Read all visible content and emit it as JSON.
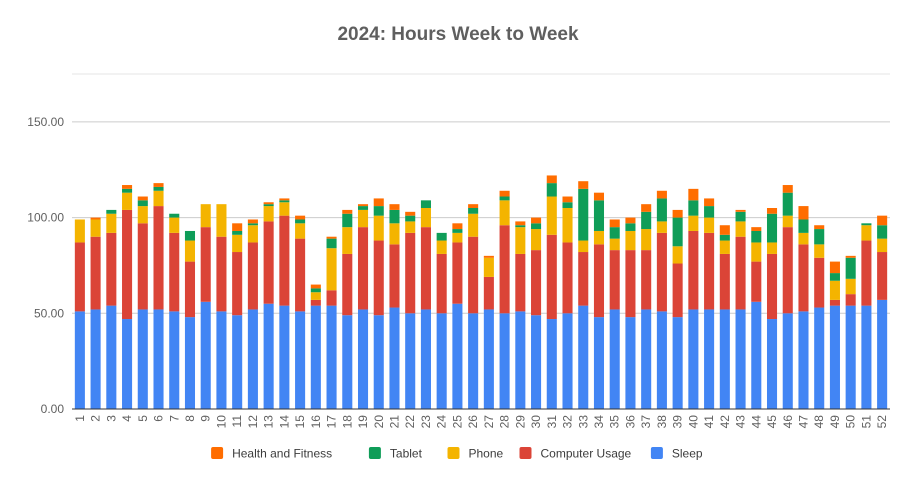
{
  "chart_data": {
    "type": "bar",
    "stacked": true,
    "title": "2024: Hours Week to Week",
    "xlabel": "",
    "ylabel": "",
    "ylim": [
      0,
      175
    ],
    "yticks": [
      0,
      50,
      100,
      150
    ],
    "ytick_labels": [
      "0.00",
      "50.00",
      "100.00",
      "150.00"
    ],
    "grid": true,
    "legend_position": "bottom",
    "categories": [
      "1",
      "2",
      "3",
      "4",
      "5",
      "6",
      "7",
      "8",
      "9",
      "10",
      "11",
      "12",
      "13",
      "14",
      "15",
      "16",
      "17",
      "18",
      "19",
      "20",
      "21",
      "22",
      "23",
      "24",
      "25",
      "26",
      "27",
      "28",
      "29",
      "30",
      "31",
      "32",
      "33",
      "34",
      "35",
      "36",
      "37",
      "38",
      "39",
      "40",
      "41",
      "42",
      "43",
      "44",
      "45",
      "46",
      "47",
      "48",
      "49",
      "50",
      "51",
      "52"
    ],
    "series": [
      {
        "name": "Sleep",
        "color": "#4285f4",
        "values": [
          51,
          52,
          54,
          47,
          52,
          52,
          51,
          48,
          56,
          51,
          49,
          52,
          55,
          54,
          51,
          54,
          54,
          49,
          52,
          49,
          53,
          50,
          52,
          50,
          55,
          50,
          52,
          50,
          51,
          49,
          47,
          50,
          54,
          48,
          52,
          48,
          52,
          51,
          48,
          52,
          52,
          52,
          52,
          56,
          47,
          50,
          51,
          53,
          54,
          54,
          54,
          57
        ]
      },
      {
        "name": "Computer Usage",
        "color": "#db4437",
        "values": [
          36,
          38,
          38,
          57,
          45,
          54,
          41,
          29,
          39,
          39,
          33,
          35,
          43,
          47,
          38,
          3,
          8,
          32,
          43,
          39,
          33,
          42,
          43,
          31,
          32,
          40,
          17,
          46,
          30,
          34,
          44,
          37,
          28,
          38,
          31,
          35,
          31,
          41,
          28,
          41,
          40,
          29,
          38,
          21,
          34,
          45,
          35,
          26,
          3,
          6,
          34,
          25
        ]
      },
      {
        "name": "Phone",
        "color": "#f4b400",
        "values": [
          12,
          9,
          10,
          9,
          9,
          8,
          8,
          11,
          12,
          17,
          9,
          9,
          8,
          7,
          8,
          4,
          22,
          14,
          9,
          13,
          11,
          6,
          10,
          7,
          5,
          12,
          10,
          13,
          14,
          11,
          20,
          18,
          6,
          7,
          6,
          10,
          11,
          6,
          9,
          8,
          8,
          7,
          8,
          10,
          6,
          6,
          6,
          7,
          10,
          8,
          8,
          7
        ]
      },
      {
        "name": "Tablet",
        "color": "#0f9d58",
        "values": [
          0,
          0,
          2,
          2,
          3,
          2,
          2,
          5,
          0,
          0,
          2,
          1,
          1,
          1,
          2,
          2,
          5,
          7,
          2,
          5,
          7,
          3,
          4,
          4,
          2,
          3,
          0,
          2,
          1,
          3,
          7,
          3,
          27,
          16,
          6,
          4,
          9,
          12,
          15,
          8,
          6,
          3,
          5,
          6,
          15,
          12,
          7,
          8,
          4,
          11,
          1,
          7
        ]
      },
      {
        "name": "Health and Fitness",
        "color": "#ff6d00",
        "values": [
          0,
          1,
          0,
          2,
          2,
          2,
          0,
          0,
          0,
          0,
          4,
          2,
          1,
          1,
          2,
          2,
          1,
          2,
          1,
          4,
          3,
          2,
          0,
          0,
          3,
          2,
          1,
          3,
          2,
          3,
          4,
          3,
          4,
          4,
          4,
          3,
          4,
          4,
          4,
          6,
          4,
          5,
          1,
          2,
          3,
          4,
          7,
          2,
          6,
          1,
          0,
          5
        ]
      }
    ]
  }
}
